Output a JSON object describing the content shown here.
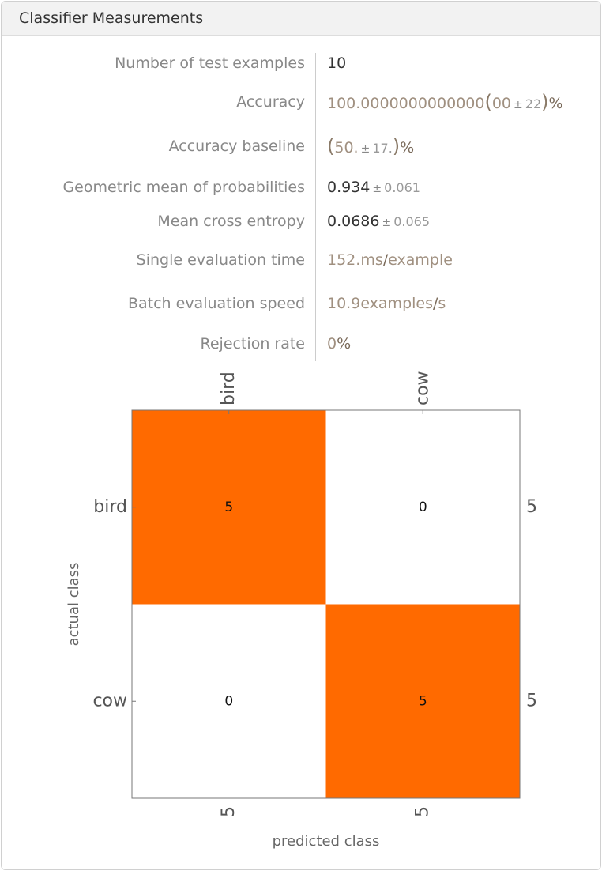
{
  "header": {
    "title": "Classifier Measurements"
  },
  "measurements": [
    {
      "label": "Number of test examples",
      "value": [
        "10"
      ]
    },
    {
      "label": "Accuracy",
      "value": [
        "100.0000000000000",
        "(",
        "00",
        "±",
        "22",
        ")",
        "%"
      ]
    },
    {
      "label": "Accuracy baseline",
      "value": [
        "(",
        "50.",
        "±",
        "17.",
        ")",
        "%"
      ]
    },
    {
      "label": "Geometric mean of probabilities",
      "value": [
        "0.934",
        "±",
        "0.061"
      ]
    },
    {
      "label": "Mean cross entropy",
      "value": [
        "0.0686",
        "±",
        "0.065"
      ]
    },
    {
      "label": "Single evaluation time",
      "value": [
        "152.",
        "ms",
        "/",
        "example"
      ]
    },
    {
      "label": "Batch evaluation speed",
      "value": [
        "10.9",
        "examples",
        "/",
        "s"
      ]
    },
    {
      "label": "Rejection rate",
      "value": [
        "0",
        "%"
      ]
    }
  ],
  "confusion_matrix": {
    "classes": [
      "bird",
      "cow"
    ],
    "counts": [
      [
        5,
        0
      ],
      [
        0,
        5
      ]
    ],
    "row_totals": [
      5,
      5
    ],
    "column_totals": [
      5,
      5
    ],
    "y_label": "actual class",
    "x_label": "predicted class",
    "color": "#ff6a00"
  }
}
